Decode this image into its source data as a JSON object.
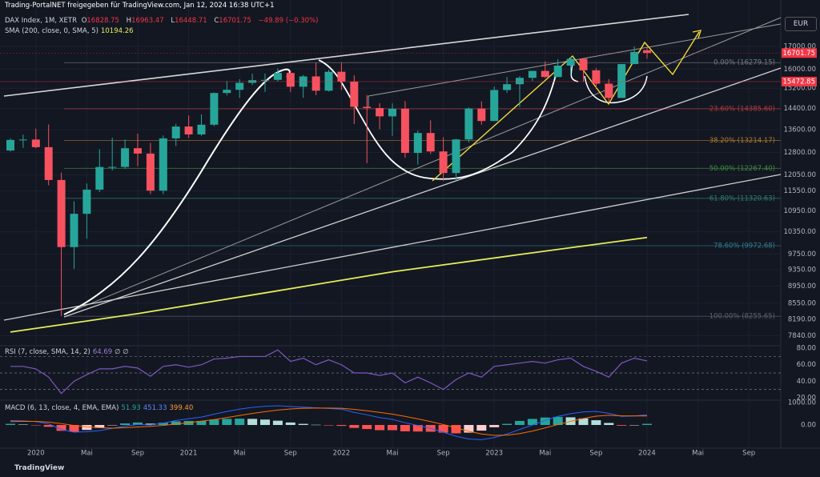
{
  "watermark": "Trading-PortalNET freigegeben für TradingView.com, Jan 12, 2024 16:38 UTC+1",
  "footer": "TradingView",
  "chart_data": {
    "type": "candlestick",
    "title": "DAX Index, 1M, XETR",
    "currency": "EUR",
    "ohlc_legend": [
      {
        "label": "O",
        "value": 16828.75
      },
      {
        "label": "H",
        "value": 16963.47
      },
      {
        "label": "L",
        "value": 16448.71
      },
      {
        "label": "C",
        "value": 16701.75
      }
    ],
    "change": "−49.89 (−0.30%)",
    "time_labels": [
      "2020",
      "Mai",
      "Sep",
      "2021",
      "Mai",
      "Sep",
      "2022",
      "Mai",
      "Sep",
      "2023",
      "Mai",
      "Sep",
      "2024",
      "Mai",
      "Sep"
    ],
    "open": [
      12867,
      13236,
      13249,
      12982,
      11890,
      9936,
      10862,
      11587,
      12311,
      12313,
      12945,
      12761,
      11556,
      13291,
      13719,
      13433,
      13786,
      15008,
      15136,
      15421,
      15531,
      15544,
      15835,
      15261,
      15688,
      15100,
      15885,
      15471,
      14461,
      14415,
      14098,
      14388,
      12784,
      13484,
      12835,
      12114,
      13253,
      14397,
      13924,
      15128,
      15365,
      15629,
      15922,
      15664,
      16148,
      16447,
      15947,
      15387,
      14810,
      16215,
      16828.75
    ],
    "high": [
      13289,
      13426,
      13640,
      13795,
      12125,
      11231,
      11781,
      12913,
      13314,
      13253,
      13460,
      13129,
      13398,
      13815,
      14131,
      14169,
      15030,
      15502,
      15568,
      15803,
      15810,
      16030,
      15932,
      15750,
      16290,
      15972,
      16285,
      15736,
      14925,
      14601,
      14597,
      14689,
      13573,
      13948,
      13330,
      13281,
      14443,
      14675,
      15270,
      15659,
      15706,
      15925,
      16331,
      16427,
      16529,
      16470,
      16043,
      15575,
      16215,
      17003,
      16963.47
    ],
    "low": [
      12829,
      12958,
      12948,
      11725,
      8256,
      9373,
      10160,
      11513,
      12199,
      12253,
      12340,
      11450,
      11450,
      13020,
      13310,
      13385,
      13736,
      14910,
      14816,
      15331,
      15052,
      15484,
      15048,
      14819,
      14919,
      15064,
      15124,
      13808,
      12439,
      13617,
      13380,
      12618,
      12391,
      12745,
      11863,
      11869,
      13148,
      13791,
      13924,
      15012,
      14459,
      15493,
      15629,
      15657,
      15731,
      15469,
      15183,
      14630,
      14810,
      16215,
      16448.71
    ],
    "close": [
      13236,
      13249,
      12982,
      11890,
      9936,
      10862,
      11587,
      12311,
      12313,
      12945,
      12761,
      11556,
      13291,
      13719,
      13433,
      13786,
      15008,
      15136,
      15421,
      15531,
      15544,
      15835,
      15261,
      15688,
      15100,
      15885,
      15471,
      14461,
      14415,
      14098,
      14388,
      12784,
      13484,
      12835,
      12114,
      13253,
      14397,
      13924,
      15128,
      15365,
      15629,
      15922,
      15664,
      16148,
      16447,
      15947,
      15387,
      14810,
      16215,
      16752,
      16701.75
    ],
    "colors": {
      "up": "#26a69a",
      "down": "#f7525f"
    },
    "log_scale": true,
    "grid": true,
    "ylim": [
      7630,
      18760
    ],
    "yticks": [
      {
        "value": 17000,
        "label": "17000.00"
      },
      {
        "value": 16000,
        "label": "16000.00"
      },
      {
        "value": 15200,
        "label": "15200.00"
      },
      {
        "value": 14400,
        "label": "14400.00"
      },
      {
        "value": 13600,
        "label": "13600.00"
      },
      {
        "value": 12800,
        "label": "12800.00"
      },
      {
        "value": 12050,
        "label": "12050.00"
      },
      {
        "value": 11550,
        "label": "11550.00"
      },
      {
        "value": 10950,
        "label": "10950.00"
      },
      {
        "value": 10350,
        "label": "10350.00"
      },
      {
        "value": 9750,
        "label": "9750.00"
      },
      {
        "value": 9350,
        "label": "9350.00"
      },
      {
        "value": 8950,
        "label": "8950.00"
      },
      {
        "value": 8550,
        "label": "8550.00"
      },
      {
        "value": 8190,
        "label": "8190.00"
      },
      {
        "value": 7840,
        "label": "7840.00"
      }
    ],
    "price_badges": [
      {
        "value": 16701.75,
        "color": "#f23645"
      },
      {
        "value": 15472.85,
        "color": "#f23645"
      }
    ],
    "fib": [
      {
        "label": "0.00% (16279.15)",
        "value": 16279.15,
        "color": "#787b86"
      },
      {
        "label": "23.60% (14385.60)",
        "value": 14385.6,
        "color": "#b03a3a"
      },
      {
        "label": "38.20% (13214.17)",
        "value": 13214.17,
        "color": "#b07a2a"
      },
      {
        "label": "50.00% (12267.40)",
        "value": 12267.4,
        "color": "#3f8a3f"
      },
      {
        "label": "61.80% (11320.63)",
        "value": 11320.63,
        "color": "#2e7d6f"
      },
      {
        "label": "78.60% (9972.68)",
        "value": 9972.68,
        "color": "#2e7d8a"
      },
      {
        "label": "100.00% (8255.65)",
        "value": 8255.65,
        "color": "#5d606b"
      }
    ],
    "sma": {
      "label": "SMA (200, close, 0, SMA, 5)",
      "color": "#e6ee5a",
      "at": [
        0,
        10,
        20,
        30,
        40,
        50
      ],
      "values": [
        7915,
        8315,
        8790,
        9300,
        9740,
        10194.26
      ]
    }
  },
  "rsi": {
    "label": "RSI (7, close, SMA, 14, 2)",
    "extra": "∅ ∅",
    "color": "#7e57c2",
    "ylim": [
      17,
      85
    ],
    "yticks": [
      {
        "value": 80,
        "label": "80.00"
      },
      {
        "value": 60,
        "label": "60.00"
      },
      {
        "value": 40,
        "label": "40.00"
      },
      {
        "value": 20,
        "label": "20.00"
      }
    ],
    "bands": [
      70,
      50,
      30
    ],
    "values": [
      58,
      58,
      55,
      45,
      25,
      40,
      48,
      55,
      55,
      58,
      56,
      46,
      58,
      60,
      57,
      60,
      67,
      68,
      70,
      70,
      70,
      78,
      64,
      68,
      60,
      66,
      60,
      50,
      50,
      47,
      50,
      38,
      45,
      38,
      30,
      42,
      50,
      45,
      58,
      60,
      62,
      64,
      62,
      66,
      68,
      58,
      52,
      45,
      62,
      68,
      64.69
    ]
  },
  "macd": {
    "label": "MACD (6, 13, close, 4, EMA, EMA)",
    "ylim": [
      -1100,
      1100
    ],
    "yticks": [
      {
        "value": 1000,
        "label": "1000.00"
      },
      {
        "value": 0,
        "label": "0.00"
      }
    ],
    "histogram": {
      "colors": [
        "#26a69a",
        "#b2dfdb",
        "#ff5252",
        "#ffcdd2"
      ],
      "values": [
        50,
        20,
        -10,
        -80,
        -260,
        -300,
        -220,
        -130,
        -10,
        70,
        110,
        60,
        100,
        160,
        180,
        180,
        240,
        270,
        280,
        270,
        240,
        190,
        110,
        50,
        10,
        -20,
        -40,
        -130,
        -180,
        -230,
        -230,
        -280,
        -290,
        -300,
        -340,
        -370,
        -340,
        -250,
        -100,
        50,
        180,
        270,
        330,
        360,
        340,
        290,
        210,
        90,
        -30,
        -5,
        51.93
      ]
    },
    "macd_line": {
      "color": "#2962ff",
      "values": [
        200,
        180,
        150,
        50,
        -200,
        -320,
        -300,
        -250,
        -150,
        -50,
        20,
        0,
        80,
        200,
        280,
        350,
        480,
        600,
        700,
        780,
        830,
        850,
        820,
        790,
        760,
        730,
        700,
        560,
        450,
        330,
        250,
        100,
        -20,
        -150,
        -320,
        -500,
        -620,
        -650,
        -560,
        -400,
        -200,
        0,
        200,
        380,
        500,
        580,
        600,
        520,
        380,
        400,
        451.33
      ]
    },
    "signal_line": {
      "color": "#ff6d00",
      "last_label": "399.40",
      "values": [
        150,
        160,
        160,
        130,
        60,
        -20,
        -80,
        -120,
        -140,
        -120,
        -90,
        -60,
        -20,
        40,
        100,
        170,
        240,
        330,
        420,
        510,
        590,
        660,
        710,
        740,
        750,
        750,
        740,
        690,
        630,
        560,
        480,
        380,
        270,
        150,
        20,
        -130,
        -280,
        -400,
        -460,
        -450,
        -380,
        -270,
        -130,
        20,
        160,
        290,
        390,
        430,
        410,
        405,
        399.4
      ]
    }
  }
}
